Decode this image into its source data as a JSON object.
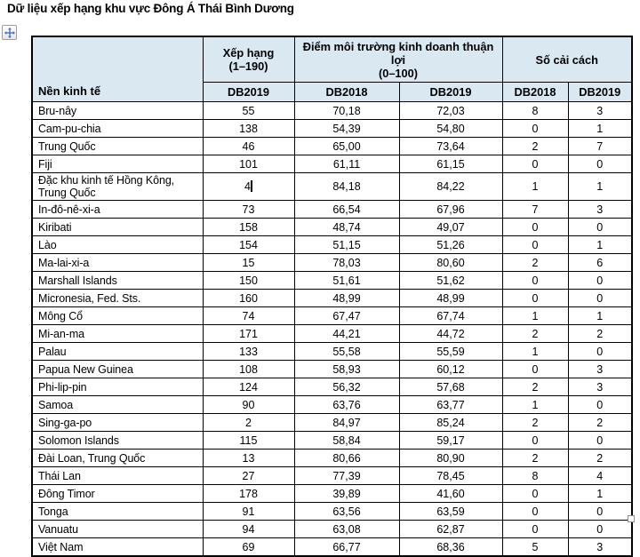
{
  "title": "Dữ liệu xếp hạng khu vực Đông Á Thái Bình Dương",
  "colors": {
    "header_bg": "#DAE8F2",
    "border": "#000000",
    "move_icon": "#3A67C0"
  },
  "icons": {
    "move_handle": "four-way-move-arrow",
    "resize_handle": "table-resize-square",
    "text_cursor": "i-beam-caret"
  },
  "table": {
    "header": {
      "economy": "Nền kinh tế",
      "rank_title": "Xếp hạng",
      "rank_range": "(1–190)",
      "score_title": "Điểm môi trường kinh doanh thuận lợi",
      "score_range": "(0–100)",
      "reforms_title": "Số cải cách",
      "sub_rank": "DB2019",
      "sub_score_2018": "DB2018",
      "sub_score_2019": "DB2019",
      "sub_reforms_2018": "DB2018",
      "sub_reforms_2019": "DB2019"
    },
    "rows": [
      {
        "economy": "Bru-nây",
        "rank": "55",
        "score2018": "70,18",
        "score2019": "72,03",
        "reforms2018": "8",
        "reforms2019": "3"
      },
      {
        "economy": "Cam-pu-chia",
        "rank": "138",
        "score2018": "54,39",
        "score2019": "54,80",
        "reforms2018": "0",
        "reforms2019": "1"
      },
      {
        "economy": "Trung Quốc",
        "rank": "46",
        "score2018": "65,00",
        "score2019": "73,64",
        "reforms2018": "2",
        "reforms2019": "7"
      },
      {
        "economy": "Fiji",
        "rank": "101",
        "score2018": "61,11",
        "score2019": "61,15",
        "reforms2018": "0",
        "reforms2019": "0"
      },
      {
        "economy": "Đặc khu kinh tế Hồng Kông, Trung Quốc",
        "rank": "4",
        "caret_after_rank": true,
        "score2018": "84,18",
        "score2019": "84,22",
        "reforms2018": "1",
        "reforms2019": "1"
      },
      {
        "economy": "In-đô-nê-xi-a",
        "rank": "73",
        "score2018": "66,54",
        "score2019": "67,96",
        "reforms2018": "7",
        "reforms2019": "3"
      },
      {
        "economy": "Kiribati",
        "rank": "158",
        "score2018": "48,74",
        "score2019": "49,07",
        "reforms2018": "0",
        "reforms2019": "0"
      },
      {
        "economy": "Lào",
        "rank": "154",
        "score2018": "51,15",
        "score2019": "51,26",
        "reforms2018": "0",
        "reforms2019": "1"
      },
      {
        "economy": "Ma-lai-xi-a",
        "rank": "15",
        "score2018": "78,03",
        "score2019": "80,60",
        "reforms2018": "2",
        "reforms2019": "6"
      },
      {
        "economy": "Marshall Islands",
        "rank": "150",
        "score2018": "51,61",
        "score2019": "51,62",
        "reforms2018": "0",
        "reforms2019": "0"
      },
      {
        "economy": "Micronesia, Fed. Sts.",
        "rank": "160",
        "score2018": "48,99",
        "score2019": "48,99",
        "reforms2018": "0",
        "reforms2019": "0"
      },
      {
        "economy": "Mông Cổ",
        "rank": "74",
        "score2018": "67,47",
        "score2019": "67,74",
        "reforms2018": "1",
        "reforms2019": "1"
      },
      {
        "economy": "Mi-an-ma",
        "rank": "171",
        "score2018": "44,21",
        "score2019": "44,72",
        "reforms2018": "2",
        "reforms2019": "2"
      },
      {
        "economy": "Palau",
        "rank": "133",
        "score2018": "55,58",
        "score2019": "55,59",
        "reforms2018": "1",
        "reforms2019": "0"
      },
      {
        "economy": "Papua New Guinea",
        "rank": "108",
        "score2018": "58,93",
        "score2019": "60,12",
        "reforms2018": "0",
        "reforms2019": "3"
      },
      {
        "economy": "Phi-lip-pin",
        "rank": "124",
        "score2018": "56,32",
        "score2019": "57,68",
        "reforms2018": "2",
        "reforms2019": "3"
      },
      {
        "economy": "Samoa",
        "rank": "90",
        "score2018": "63,76",
        "score2019": "63,77",
        "reforms2018": "1",
        "reforms2019": "0"
      },
      {
        "economy": "Sing-ga-po",
        "rank": "2",
        "score2018": "84,97",
        "score2019": "85,24",
        "reforms2018": "2",
        "reforms2019": "2"
      },
      {
        "economy": "Solomon Islands",
        "rank": "115",
        "score2018": "58,84",
        "score2019": "59,17",
        "reforms2018": "0",
        "reforms2019": "0"
      },
      {
        "economy": "Đài Loan, Trung Quốc",
        "rank": "13",
        "score2018": "80,66",
        "score2019": "80,90",
        "reforms2018": "2",
        "reforms2019": "2"
      },
      {
        "economy": "Thái Lan",
        "rank": "27",
        "score2018": "77,39",
        "score2019": "78,45",
        "reforms2018": "8",
        "reforms2019": "4"
      },
      {
        "economy": "Đông Timor",
        "rank": "178",
        "score2018": "39,89",
        "score2019": "41,60",
        "reforms2018": "0",
        "reforms2019": "1"
      },
      {
        "economy": "Tonga",
        "rank": "91",
        "score2018": "63,56",
        "score2019": "63,59",
        "reforms2018": "0",
        "reforms2019": "0"
      },
      {
        "economy": "Vanuatu",
        "rank": "94",
        "score2018": "63,08",
        "score2019": "62,87",
        "reforms2018": "0",
        "reforms2019": "0"
      },
      {
        "economy": "Việt Nam",
        "rank": "69",
        "score2018": "66,77",
        "score2019": "68,36",
        "reforms2018": "5",
        "reforms2019": "3"
      }
    ]
  }
}
